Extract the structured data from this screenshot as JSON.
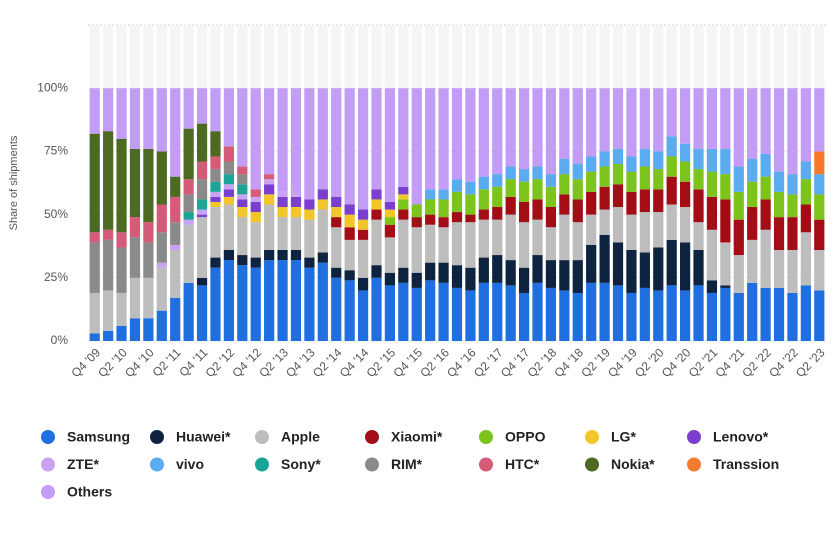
{
  "chart_data": {
    "type": "stacked-bar",
    "y_label": "Share of shipments",
    "categories": [
      "Q4 '09",
      null,
      "Q2 '10",
      null,
      "Q4 '10",
      null,
      "Q2 '11",
      null,
      "Q4 '11",
      null,
      "Q2 '12",
      null,
      "Q4 '12",
      null,
      "Q2 '13",
      null,
      "Q4 '13",
      null,
      "Q2 '14",
      null,
      "Q4 '14",
      null,
      "Q2 '15",
      null,
      "Q4 '15",
      null,
      "Q2 '16",
      null,
      "Q4 '16",
      null,
      "Q2 '17",
      null,
      "Q4 '17",
      null,
      "Q2 '18",
      null,
      "Q4 '18",
      null,
      "Q2 '19",
      null,
      "Q4 '19",
      null,
      "Q2 '20",
      null,
      "Q4 '20",
      null,
      "Q2 '21",
      null,
      "Q4 '21",
      null,
      "Q2 '22",
      null,
      "Q4 '22",
      null,
      "Q2 '23"
    ],
    "ylim": [
      0,
      125
    ],
    "yticks": [
      {
        "value": 0,
        "label": "0%"
      },
      {
        "value": 25,
        "label": "25%"
      },
      {
        "value": 50,
        "label": "50%"
      },
      {
        "value": 75,
        "label": "75%"
      },
      {
        "value": 100,
        "label": "100%"
      }
    ],
    "grid": true,
    "series": [
      {
        "name": "Samsung",
        "color": "#1f6fe0",
        "values": [
          3,
          4,
          6,
          9,
          9,
          12,
          17,
          23,
          22,
          29,
          32,
          30,
          29,
          32,
          32,
          32,
          29,
          31,
          25,
          24,
          20,
          25,
          22,
          23,
          21,
          24,
          23,
          21,
          20,
          23,
          23,
          22,
          19,
          23,
          21,
          20,
          19,
          23,
          23,
          22,
          19,
          21,
          20,
          22,
          20,
          22,
          19,
          21,
          19,
          23,
          21,
          21,
          19,
          22,
          20
        ]
      },
      {
        "name": "Huawei*",
        "color": "#0d2340",
        "values": [
          0,
          0,
          0,
          0,
          0,
          0,
          0,
          0,
          3,
          4,
          4,
          4,
          4,
          4,
          4,
          4,
          4,
          4,
          4,
          4,
          5,
          5,
          5,
          6,
          6,
          7,
          8,
          9,
          9,
          10,
          11,
          10,
          10,
          11,
          11,
          12,
          13,
          15,
          19,
          17,
          17,
          14,
          17,
          18,
          19,
          14,
          5,
          1,
          0,
          0,
          0,
          0,
          0,
          0,
          0
        ]
      },
      {
        "name": "Apple",
        "color": "#bdbdbd",
        "values": [
          16,
          16,
          13,
          16,
          16,
          17,
          19,
          23,
          24,
          20,
          18,
          15,
          14,
          18,
          13,
          13,
          15,
          17,
          16,
          12,
          15,
          18,
          14,
          19,
          18,
          15,
          14,
          17,
          18,
          15,
          14,
          18,
          18,
          14,
          13,
          18,
          15,
          12,
          10,
          14,
          14,
          16,
          14,
          14,
          14,
          11,
          20,
          17,
          15,
          17,
          23,
          15,
          17,
          21,
          16
        ]
      },
      {
        "name": "Xiaomi*",
        "color": "#a30d16",
        "values": [
          0,
          0,
          0,
          0,
          0,
          0,
          0,
          0,
          0,
          0,
          0,
          0,
          0,
          0,
          0,
          0,
          0,
          0,
          4,
          5,
          4,
          4,
          5,
          4,
          4,
          4,
          4,
          4,
          3,
          4,
          5,
          7,
          8,
          8,
          8,
          8,
          9,
          9,
          9,
          9,
          9,
          9,
          9,
          11,
          10,
          13,
          13,
          17,
          14,
          13,
          12,
          13,
          13,
          11,
          12
        ]
      },
      {
        "name": "OPPO",
        "color": "#7cc41c",
        "values": [
          0,
          0,
          0,
          0,
          0,
          0,
          0,
          0,
          0,
          0,
          0,
          0,
          0,
          0,
          0,
          0,
          0,
          0,
          0,
          0,
          0,
          0,
          3,
          4,
          5,
          6,
          7,
          8,
          8,
          8,
          8,
          7,
          8,
          8,
          8,
          8,
          8,
          8,
          8,
          8,
          8,
          9,
          8,
          8,
          8,
          8,
          10,
          10,
          11,
          10,
          9,
          10,
          9,
          10,
          10
        ]
      },
      {
        "name": "LG*",
        "color": "#f0c62a",
        "values": [
          0,
          0,
          0,
          0,
          0,
          0,
          0,
          0,
          0,
          2,
          3,
          4,
          4,
          4,
          4,
          4,
          4,
          4,
          4,
          5,
          4,
          4,
          3,
          2,
          0,
          0,
          0,
          0,
          0,
          0,
          0,
          0,
          0,
          0,
          0,
          0,
          0,
          0,
          0,
          0,
          0,
          0,
          0,
          0,
          0,
          0,
          0,
          0,
          0,
          0,
          0,
          0,
          0,
          0,
          0
        ]
      },
      {
        "name": "Lenovo*",
        "color": "#7a3fcf",
        "values": [
          0,
          0,
          0,
          0,
          0,
          0,
          0,
          0,
          1,
          2,
          3,
          3,
          4,
          4,
          4,
          4,
          4,
          4,
          4,
          4,
          4,
          4,
          3,
          3,
          0,
          0,
          0,
          0,
          0,
          0,
          0,
          0,
          0,
          0,
          0,
          0,
          0,
          0,
          0,
          0,
          0,
          0,
          0,
          0,
          0,
          0,
          0,
          0,
          0,
          0,
          0,
          0,
          0,
          0,
          0
        ]
      },
      {
        "name": "ZTE*",
        "color": "#c9a3f2",
        "values": [
          0,
          0,
          0,
          0,
          0,
          2,
          2,
          2,
          2,
          2,
          2,
          2,
          2,
          2,
          2,
          2,
          0,
          0,
          0,
          0,
          0,
          0,
          0,
          0,
          0,
          0,
          0,
          0,
          0,
          0,
          0,
          0,
          0,
          0,
          0,
          0,
          0,
          0,
          0,
          0,
          0,
          0,
          0,
          0,
          0,
          0,
          0,
          0,
          0,
          0,
          0,
          0,
          0,
          0,
          0
        ]
      },
      {
        "name": "vivo",
        "color": "#5aabf0",
        "values": [
          0,
          0,
          0,
          0,
          0,
          0,
          0,
          0,
          0,
          0,
          0,
          0,
          0,
          0,
          0,
          0,
          0,
          0,
          0,
          0,
          0,
          0,
          0,
          0,
          0,
          4,
          4,
          5,
          5,
          5,
          5,
          5,
          5,
          5,
          5,
          6,
          6,
          6,
          6,
          6,
          6,
          7,
          7,
          8,
          7,
          8,
          9,
          10,
          10,
          9,
          9,
          8,
          8,
          7,
          8
        ]
      },
      {
        "name": "Sony*",
        "color": "#1aa597",
        "values": [
          0,
          0,
          0,
          0,
          0,
          0,
          0,
          3,
          4,
          4,
          4,
          4,
          0,
          0,
          0,
          0,
          0,
          0,
          0,
          0,
          0,
          0,
          0,
          0,
          0,
          0,
          0,
          0,
          0,
          0,
          0,
          0,
          0,
          0,
          0,
          0,
          0,
          0,
          0,
          0,
          0,
          0,
          0,
          0,
          0,
          0,
          0,
          0,
          0,
          0,
          0,
          0,
          0,
          0,
          0
        ]
      },
      {
        "name": "RIM*",
        "color": "#8a8a8a",
        "values": [
          20,
          20,
          18,
          16,
          14,
          12,
          9,
          7,
          8,
          5,
          5,
          4,
          0,
          0,
          0,
          0,
          0,
          0,
          0,
          0,
          0,
          0,
          0,
          0,
          0,
          0,
          0,
          0,
          0,
          0,
          0,
          0,
          0,
          0,
          0,
          0,
          0,
          0,
          0,
          0,
          0,
          0,
          0,
          0,
          0,
          0,
          0,
          0,
          0,
          0,
          0,
          0,
          0,
          0,
          0
        ]
      },
      {
        "name": "HTC*",
        "color": "#d45c78",
        "values": [
          4,
          4,
          6,
          8,
          8,
          11,
          10,
          6,
          7,
          5,
          6,
          3,
          3,
          2,
          0,
          0,
          0,
          0,
          0,
          0,
          0,
          0,
          0,
          0,
          0,
          0,
          0,
          0,
          0,
          0,
          0,
          0,
          0,
          0,
          0,
          0,
          0,
          0,
          0,
          0,
          0,
          0,
          0,
          0,
          0,
          0,
          0,
          0,
          0,
          0,
          0,
          0,
          0,
          0,
          0
        ]
      },
      {
        "name": "Nokia*",
        "color": "#4c6a22",
        "values": [
          39,
          39,
          37,
          27,
          29,
          21,
          8,
          20,
          15,
          10,
          0,
          0,
          0,
          0,
          0,
          0,
          0,
          0,
          0,
          0,
          0,
          0,
          0,
          0,
          0,
          0,
          0,
          0,
          0,
          0,
          0,
          0,
          0,
          0,
          0,
          0,
          0,
          0,
          0,
          0,
          0,
          0,
          0,
          0,
          0,
          0,
          0,
          0,
          0,
          0,
          0,
          0,
          0,
          0,
          0
        ]
      },
      {
        "name": "Transsion",
        "color": "#f57a2e",
        "values": [
          0,
          0,
          0,
          0,
          0,
          0,
          0,
          0,
          0,
          0,
          0,
          0,
          0,
          0,
          0,
          0,
          0,
          0,
          0,
          0,
          0,
          0,
          0,
          0,
          0,
          0,
          0,
          0,
          0,
          0,
          0,
          0,
          0,
          0,
          0,
          0,
          0,
          0,
          0,
          0,
          0,
          0,
          0,
          0,
          0,
          0,
          0,
          0,
          0,
          0,
          0,
          0,
          0,
          0,
          9
        ]
      },
      {
        "name": "Others",
        "color": "#c29cf5",
        "values": [
          18,
          17,
          20,
          24,
          24,
          25,
          35,
          16,
          14,
          17,
          23,
          31,
          40,
          34,
          41,
          41,
          44,
          40,
          43,
          46,
          48,
          40,
          45,
          39,
          46,
          40,
          40,
          36,
          37,
          35,
          34,
          31,
          32,
          31,
          34,
          28,
          30,
          27,
          25,
          24,
          27,
          24,
          25,
          19,
          22,
          24,
          24,
          24,
          31,
          28,
          26,
          33,
          34,
          29,
          25
        ]
      }
    ]
  }
}
